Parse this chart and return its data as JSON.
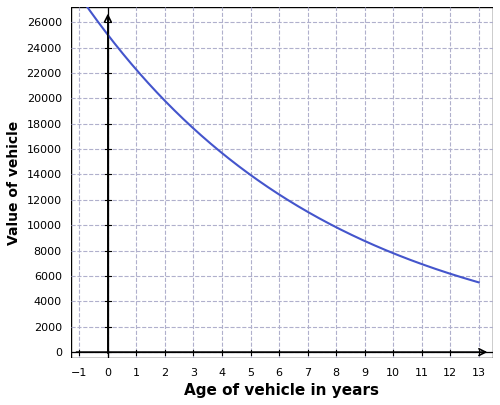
{
  "title": "",
  "xlabel": "Age of vehicle in years",
  "ylabel": "Value of vehicle",
  "formula_a": 25000,
  "formula_b": 0.89,
  "x_min": -1,
  "x_max": 13,
  "y_min": 0,
  "y_max": 26000,
  "x_ticks": [
    -1,
    0,
    1,
    2,
    3,
    4,
    5,
    6,
    7,
    8,
    9,
    10,
    11,
    12,
    13
  ],
  "y_ticks": [
    0,
    2000,
    4000,
    6000,
    8000,
    10000,
    12000,
    14000,
    16000,
    18000,
    20000,
    22000,
    24000,
    26000
  ],
  "line_color": "#4455cc",
  "line_width": 1.5,
  "grid_color": "#b0b0cc",
  "grid_linestyle": "--",
  "grid_linewidth": 0.8,
  "background_color": "#ffffff",
  "xlabel_fontsize": 11,
  "ylabel_fontsize": 10,
  "tick_fontsize": 8,
  "border_color": "#000000"
}
